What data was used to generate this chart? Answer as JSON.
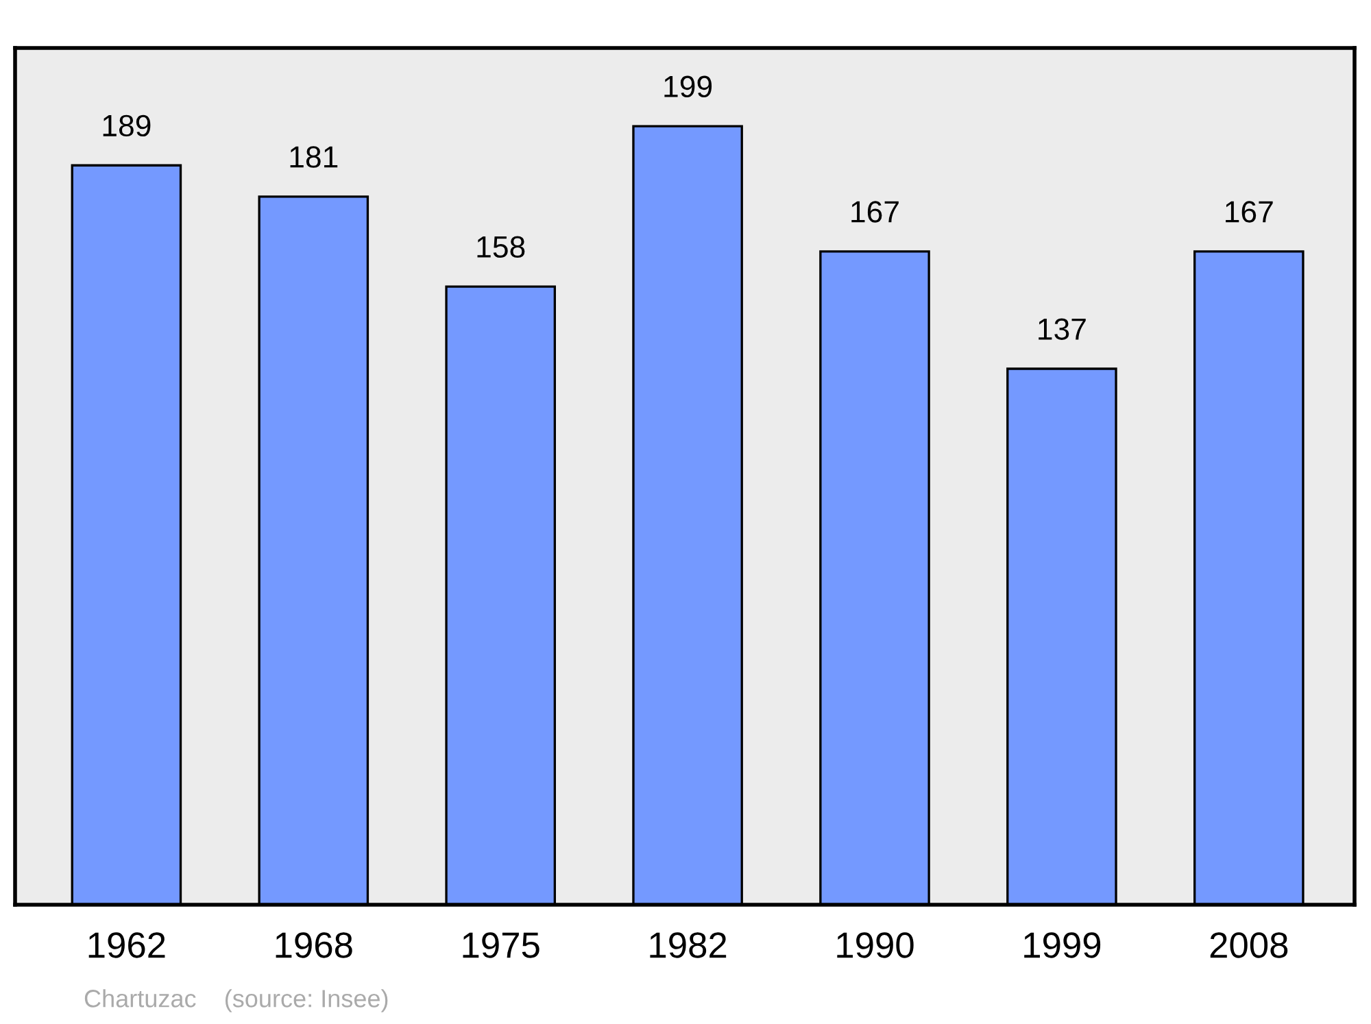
{
  "chart_data": {
    "type": "bar",
    "categories": [
      "1962",
      "1968",
      "1975",
      "1982",
      "1990",
      "1999",
      "2008"
    ],
    "values": [
      189,
      181,
      158,
      199,
      167,
      137,
      167
    ],
    "color": "#7499ff",
    "ylim": [
      0,
      219
    ],
    "tick_labels": "x",
    "data_labels": true,
    "grid": false,
    "legend": false,
    "annotations": [
      "Chartuzac    (source: Insee)"
    ]
  }
}
